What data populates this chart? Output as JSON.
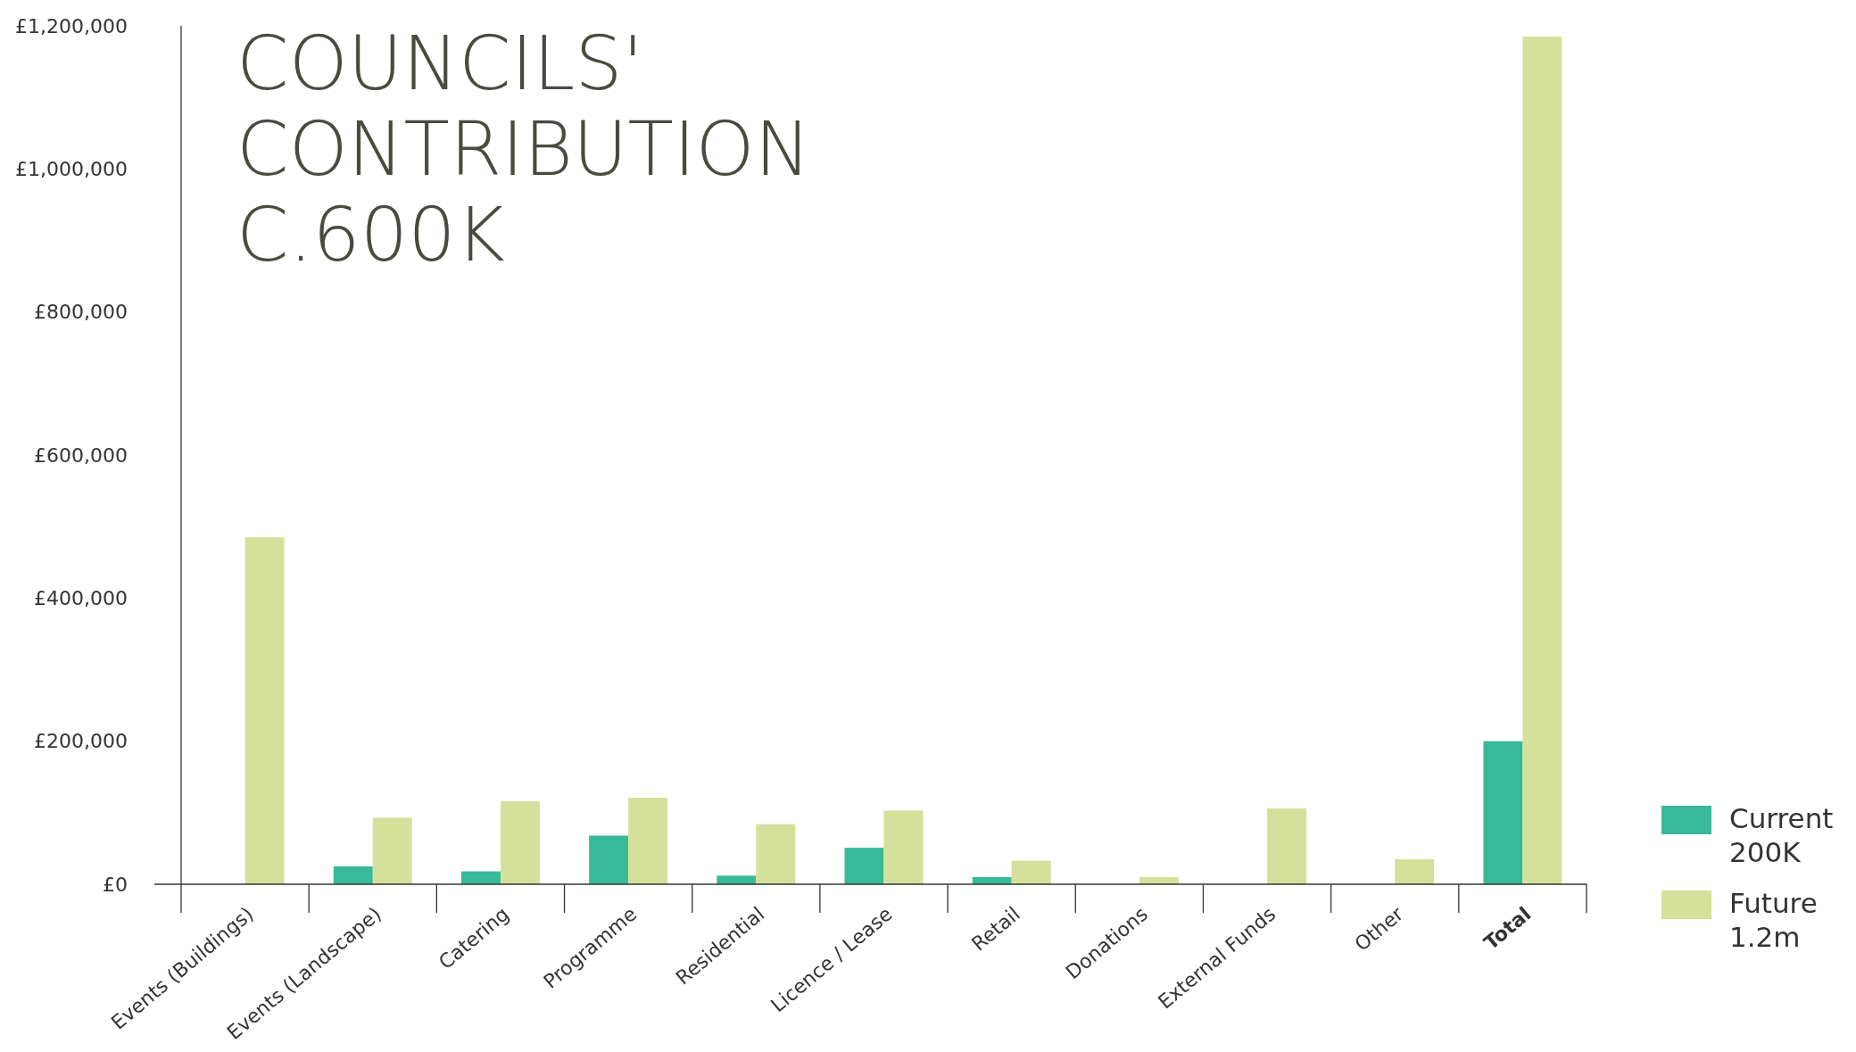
{
  "chart_data": {
    "type": "bar",
    "title": "COUNCILS' CONTRIBUTION C.600K",
    "categories": [
      "Events (Buildings)",
      "Events (Landscape)",
      "Catering",
      "Programme",
      "Residential",
      "Licence / Lease",
      "Retail",
      "Donations",
      "External Funds",
      "Other",
      "Total"
    ],
    "series": [
      {
        "name": "Current 200K",
        "color": "#38b997",
        "values": [
          null,
          25000,
          18000,
          68000,
          12000,
          51000,
          10000,
          null,
          null,
          null,
          200000
        ]
      },
      {
        "name": "Future 1.2m",
        "color": "#d5e09a",
        "values": [
          485000,
          93000,
          116000,
          121000,
          84000,
          103000,
          33000,
          10000,
          106000,
          35000,
          1185000
        ]
      }
    ],
    "ylim": [
      0,
      1200000
    ],
    "yticks": [
      {
        "value": 0,
        "label": "£0"
      },
      {
        "value": 200000,
        "label": "£200,000"
      },
      {
        "value": 400000,
        "label": "£400,000"
      },
      {
        "value": 600000,
        "label": "£600,000"
      },
      {
        "value": 800000,
        "label": "£800,000"
      },
      {
        "value": 1000000,
        "label": "£1,000,000"
      },
      {
        "value": 1200000,
        "label": "£1,200,000"
      }
    ],
    "legend": "bottom right",
    "grid": false
  }
}
